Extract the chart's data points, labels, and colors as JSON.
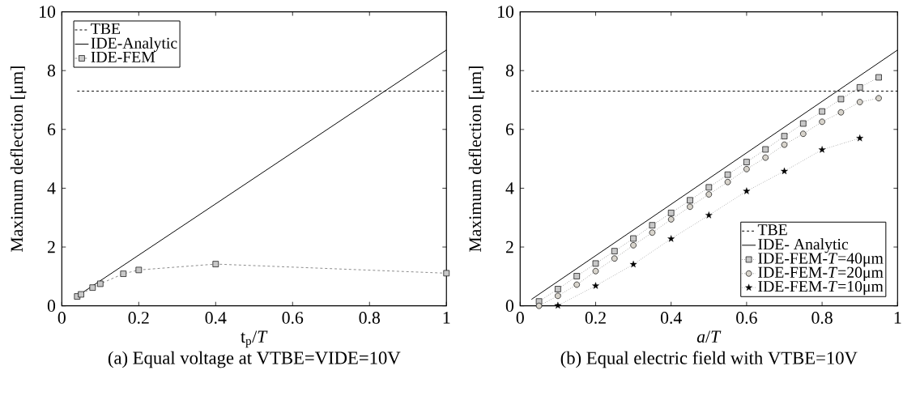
{
  "chart_data": [
    {
      "type": "line",
      "title": "(a) Equal voltage at VTBE=VIDE=10V",
      "xlabel": "t$_{p}$/*T*",
      "ylabel": "Maximum deflection [μm]",
      "xlim": [
        0,
        1
      ],
      "ylim": [
        0,
        10
      ],
      "xticks": [
        0,
        0.2,
        0.4,
        0.6,
        0.8,
        1
      ],
      "yticks": [
        0,
        2,
        4,
        6,
        8,
        10
      ],
      "grid": false,
      "legend": "top left",
      "series": [
        {
          "name": "TBE",
          "color": "#000000",
          "line_style": "dashed",
          "marker": "none",
          "x": [
            0.04,
            1
          ],
          "values": [
            7.3,
            7.3
          ]
        },
        {
          "name": "IDE-Analytic",
          "color": "#000000",
          "line_style": "solid",
          "marker": "none",
          "x": [
            0.04,
            1
          ],
          "values": [
            0.33,
            8.7
          ]
        },
        {
          "name": "IDE-FEM",
          "color": "#c8c8c8",
          "line_style": "dashed",
          "marker": "square",
          "x": [
            0.04,
            0.05,
            0.08,
            0.1,
            0.16,
            0.2,
            0.4,
            1
          ],
          "values": [
            0.32,
            0.39,
            0.62,
            0.75,
            1.09,
            1.22,
            1.42,
            1.11
          ]
        }
      ]
    },
    {
      "type": "line",
      "title": "(b) Equal electric field with VTBE=10V",
      "xlabel": "*a*/*T*",
      "ylabel": "Maximum deflection [μm]",
      "xlim": [
        0,
        1
      ],
      "ylim": [
        0,
        10
      ],
      "xticks": [
        0,
        0.2,
        0.4,
        0.6,
        0.8,
        1
      ],
      "yticks": [
        0,
        2,
        4,
        6,
        8,
        10
      ],
      "grid": false,
      "legend": "bottom right",
      "series": [
        {
          "name": "TBE",
          "color": "#000000",
          "line_style": "dashed",
          "marker": "none",
          "x": [
            0.03,
            1
          ],
          "values": [
            7.3,
            7.3
          ]
        },
        {
          "name": "IDE- Analytic",
          "color": "#000000",
          "line_style": "solid",
          "marker": "none",
          "x": [
            0.03,
            1
          ],
          "values": [
            0.22,
            8.7
          ]
        },
        {
          "name": "IDE-FEM-*T*=40μm",
          "color": "#c8c8c8",
          "line_style": "dotted",
          "marker": "square",
          "x": [
            0.05,
            0.1,
            0.15,
            0.2,
            0.25,
            0.3,
            0.35,
            0.4,
            0.45,
            0.5,
            0.55,
            0.6,
            0.65,
            0.7,
            0.75,
            0.8,
            0.85,
            0.9,
            0.95
          ],
          "values": [
            0.15,
            0.57,
            1.01,
            1.44,
            1.86,
            2.29,
            2.74,
            3.16,
            3.59,
            4.03,
            4.46,
            4.89,
            5.32,
            5.77,
            6.2,
            6.61,
            7.03,
            7.43,
            7.77
          ]
        },
        {
          "name": "IDE-FEM-*T*=20μm",
          "color": "#d8d4cc",
          "line_style": "dotted",
          "marker": "circle",
          "x": [
            0.05,
            0.1,
            0.15,
            0.2,
            0.25,
            0.3,
            0.35,
            0.4,
            0.45,
            0.5,
            0.55,
            0.6,
            0.65,
            0.7,
            0.75,
            0.8,
            0.85,
            0.9,
            0.95
          ],
          "values": [
            0,
            0.34,
            0.72,
            1.18,
            1.61,
            2.06,
            2.49,
            2.94,
            3.37,
            3.79,
            4.21,
            4.65,
            5.04,
            5.48,
            5.85,
            6.26,
            6.58,
            6.93,
            7.06
          ]
        },
        {
          "name": "IDE-FEM-*T*=10μm",
          "color": "#000000",
          "line_style": "dotted",
          "marker": "star",
          "x": [
            0.1,
            0.2,
            0.3,
            0.4,
            0.5,
            0.6,
            0.7,
            0.8,
            0.9
          ],
          "values": [
            0.01,
            0.68,
            1.41,
            2.28,
            3.08,
            3.9,
            4.58,
            5.31,
            5.7
          ]
        }
      ]
    }
  ]
}
